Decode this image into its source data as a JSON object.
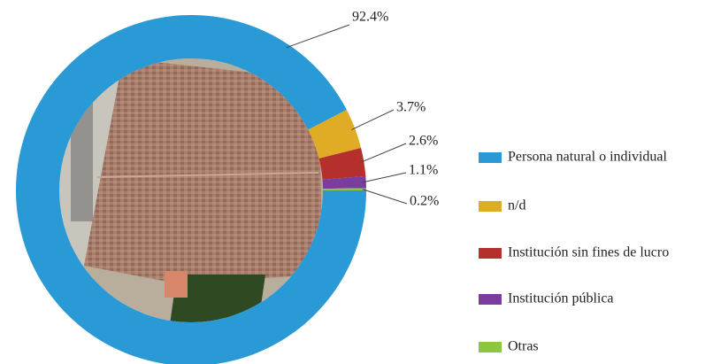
{
  "chart_data": {
    "type": "donut",
    "categories": [
      "Persona natural o individual",
      "n/d",
      "Institución sin fines de lucro",
      "Institución pública",
      "Otras"
    ],
    "values": [
      92.4,
      3.7,
      2.6,
      1.1,
      0.2
    ],
    "value_labels": [
      "92.4%",
      "3.7%",
      "2.6%",
      "1.1%",
      "0.2%"
    ],
    "colors": [
      "#2a9ad6",
      "#e0ab25",
      "#b52f2c",
      "#7a3c9e",
      "#8cc63e"
    ],
    "legend": "right"
  }
}
